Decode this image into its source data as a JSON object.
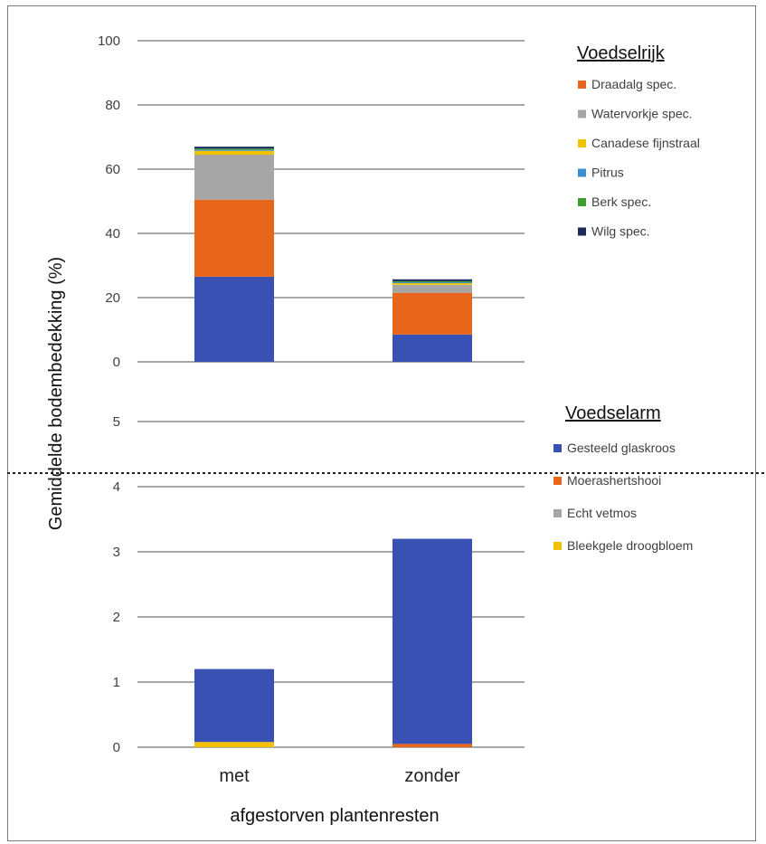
{
  "chart_data": [
    {
      "type": "bar",
      "stacked": true,
      "panel": "upper",
      "categories": [
        "met",
        "zonder"
      ],
      "ylim": [
        0,
        100
      ],
      "yticks": [
        0,
        20,
        40,
        60,
        80,
        100
      ],
      "legend_title": "Voedselrijk",
      "legend_position": "right",
      "grid": true,
      "series": [
        {
          "name": "Wilg spec.",
          "color": "#1b2a5e",
          "values": [
            0.6,
            0.6
          ]
        },
        {
          "name": "Berk spec.",
          "color": "#3c9e2f",
          "values": [
            0.4,
            0.3
          ]
        },
        {
          "name": "Pitrus",
          "color": "#3c8fcf",
          "values": [
            0.3,
            0.3
          ]
        },
        {
          "name": "Canadese fijnstraal",
          "color": "#f2c200",
          "values": [
            1.2,
            0.5
          ]
        },
        {
          "name": "Watervorkje spec.",
          "color": "#a6a6a6",
          "values": [
            14,
            2.5
          ]
        },
        {
          "name": "Draadalg spec.",
          "color": "#e8661c",
          "values": [
            24,
            13
          ]
        },
        {
          "name": "Gesteeld glaskroos",
          "color": "#3a51b4",
          "values": [
            26.5,
            8.5
          ]
        }
      ]
    },
    {
      "type": "bar",
      "stacked": true,
      "panel": "lower",
      "categories": [
        "met",
        "zonder"
      ],
      "ylim": [
        0,
        5
      ],
      "yticks": [
        0,
        1,
        2,
        3,
        4,
        5
      ],
      "legend_title": "Voedselarm",
      "legend_position": "right",
      "grid": true,
      "series": [
        {
          "name": "Gesteeld glaskroos",
          "color": "#3a51b4",
          "values": [
            1.12,
            3.15
          ]
        },
        {
          "name": "Moerashertshooi",
          "color": "#e8661c",
          "values": [
            0.0,
            0.05
          ]
        },
        {
          "name": "Echt vetmos",
          "color": "#a6a6a6",
          "values": [
            0.0,
            0.0
          ]
        },
        {
          "name": "Bleekgele droogbloem",
          "color": "#f2c200",
          "values": [
            0.08,
            0.0
          ]
        }
      ]
    }
  ],
  "ylabel": "Gemiddelde bodembedekking (%)",
  "xlabel": "afgestorven plantenresten",
  "legend_upper_order": [
    "Draadalg spec.",
    "Watervorkje spec.",
    "Canadese fijnstraal",
    "Pitrus",
    "Berk spec.",
    "Wilg spec."
  ],
  "legend_lower_order": [
    "Gesteeld glaskroos",
    "Moerashertshooi",
    "Echt vetmos",
    "Bleekgele droogbloem"
  ]
}
